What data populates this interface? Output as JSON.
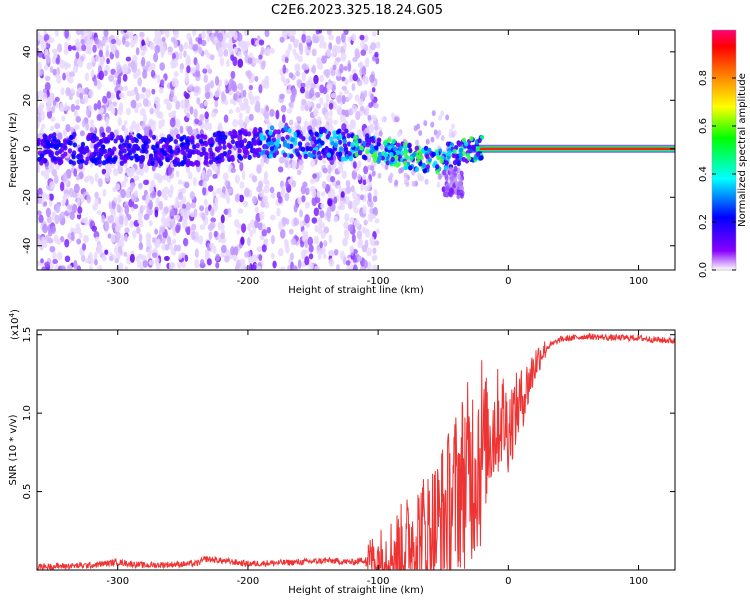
{
  "title": "C2E6.2023.325.18.24.G05",
  "chart_data": [
    {
      "type": "heatmap",
      "xlabel": "Height of straight line (km)",
      "ylabel": "Frequency (Hz)",
      "xlim": [
        -362,
        128
      ],
      "ylim": [
        -50,
        49
      ],
      "xticks": [
        -300,
        -200,
        -100,
        0,
        100
      ],
      "yticks": [
        -40,
        -20,
        0,
        20,
        40
      ],
      "grid": false,
      "colorbar": {
        "label": "Normalized spectral amplitude",
        "range": [
          0,
          1
        ],
        "ticks": [
          0.0,
          0.2,
          0.4,
          0.6,
          0.8
        ],
        "colormap": [
          "#ffffff",
          "#6a00ff",
          "#0000ff",
          "#00ffff",
          "#00ff00",
          "#ffff00",
          "#ff8000",
          "#ff0000",
          "#ff0080"
        ]
      },
      "features": {
        "noise_region_x": [
          -362,
          -100
        ],
        "scatter_region_x": [
          -130,
          -20
        ],
        "carrier_region_x": [
          -20,
          128
        ],
        "carrier_frequency": 0
      },
      "center_trace": [
        {
          "x": -300,
          "y": 0
        },
        {
          "x": -250,
          "y": -1
        },
        {
          "x": -180,
          "y": 3
        },
        {
          "x": -140,
          "y": 2
        },
        {
          "x": -110,
          "y": 1
        },
        {
          "x": -85,
          "y": -2
        },
        {
          "x": -70,
          "y": -4
        },
        {
          "x": -55,
          "y": -5
        },
        {
          "x": -42,
          "y": -2
        },
        {
          "x": -30,
          "y": -1
        },
        {
          "x": -15,
          "y": 1
        },
        {
          "x": 0,
          "y": 0
        },
        {
          "x": 128,
          "y": 0
        }
      ]
    },
    {
      "type": "line",
      "xlabel": "Height of straight line (km)",
      "ylabel": "SNR (10 * v/v)",
      "scale_label": "(x10",
      "scale_exponent": "4",
      "scale_close": ")",
      "xlim": [
        -362,
        128
      ],
      "ylim": [
        0,
        1.53
      ],
      "xticks": [
        -300,
        -200,
        -100,
        0,
        100
      ],
      "yticks": [
        0.5,
        1.0,
        1.5
      ],
      "ytick_labels": [
        "0.5",
        "1.0",
        "1.5"
      ],
      "color": "#ee3333",
      "series": [
        {
          "x": [
            -362,
            -320,
            -300,
            -280,
            -240,
            -232,
            -200,
            -160,
            -140,
            -120,
            -100,
            -90,
            -80,
            -70,
            -60,
            -55,
            -50,
            -45,
            -40,
            -35,
            -30,
            -25,
            -20,
            -15,
            -10,
            -5,
            0,
            5,
            10,
            15,
            20,
            25,
            30,
            40,
            50,
            60,
            80,
            100,
            110,
            128
          ],
          "values": [
            0.02,
            0.03,
            0.05,
            0.03,
            0.04,
            0.07,
            0.04,
            0.05,
            0.06,
            0.05,
            0.08,
            0.1,
            0.15,
            0.22,
            0.25,
            0.28,
            0.35,
            0.4,
            0.5,
            0.58,
            0.62,
            0.7,
            0.78,
            0.85,
            0.92,
            0.98,
            0.9,
            1.0,
            1.08,
            1.18,
            1.3,
            1.38,
            1.42,
            1.47,
            1.48,
            1.49,
            1.48,
            1.48,
            1.47,
            1.46
          ]
        }
      ]
    }
  ]
}
